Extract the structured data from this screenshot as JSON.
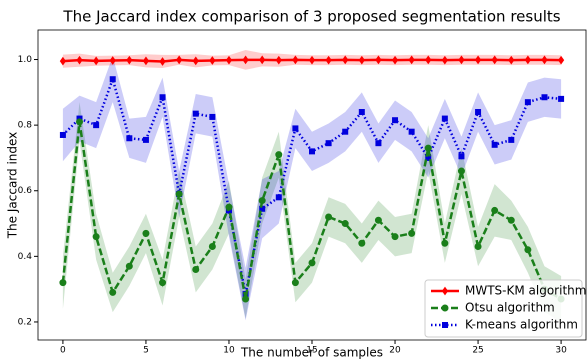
{
  "chart_data": {
    "type": "line",
    "title": "The Jaccard index comparison of 3 proposed segmentation results",
    "x_label": "The number of samples",
    "y_label": "The Jaccard index",
    "x": [
      0,
      1,
      2,
      3,
      4,
      5,
      6,
      7,
      8,
      9,
      10,
      11,
      12,
      13,
      14,
      15,
      16,
      17,
      18,
      19,
      20,
      21,
      22,
      23,
      24,
      25,
      26,
      27,
      28,
      29,
      30
    ],
    "series": [
      {
        "name": "MWTS-KM algorithm",
        "color": "#ff0000",
        "marker": "diamond",
        "values": [
          0.995,
          0.998,
          0.996,
          0.997,
          0.998,
          0.996,
          0.994,
          0.999,
          0.996,
          0.997,
          0.998,
          0.999,
          0.999,
          0.998,
          0.999,
          0.998,
          0.998,
          0.999,
          0.998,
          0.999,
          0.998,
          0.999,
          0.999,
          0.998,
          0.999,
          0.999,
          0.999,
          0.998,
          0.999,
          0.999,
          0.998
        ],
        "errors": [
          0.02,
          0.02,
          0.015,
          0.015,
          0.015,
          0.02,
          0.02,
          0.015,
          0.02,
          0.015,
          0.015,
          0.03,
          0.02,
          0.02,
          0.015,
          0.015,
          0.015,
          0.015,
          0.015,
          0.015,
          0.015,
          0.015,
          0.015,
          0.015,
          0.015,
          0.015,
          0.015,
          0.015,
          0.015,
          0.015,
          0.015
        ]
      },
      {
        "name": "Otsu algorithm",
        "color": "#1a7f1a",
        "marker": "circle",
        "values": [
          0.32,
          0.81,
          0.46,
          0.29,
          0.37,
          0.47,
          0.32,
          0.59,
          0.36,
          0.43,
          0.55,
          0.27,
          0.57,
          0.71,
          0.32,
          0.38,
          0.52,
          0.5,
          0.44,
          0.51,
          0.46,
          0.47,
          0.73,
          0.44,
          0.66,
          0.43,
          0.54,
          0.51,
          0.42,
          0.3,
          0.27
        ],
        "errors": [
          0.08,
          0.06,
          0.07,
          0.06,
          0.06,
          0.06,
          0.07,
          0.07,
          0.07,
          0.07,
          0.08,
          0.06,
          0.07,
          0.07,
          0.06,
          0.06,
          0.06,
          0.06,
          0.06,
          0.06,
          0.06,
          0.06,
          0.07,
          0.06,
          0.07,
          0.06,
          0.08,
          0.06,
          0.07,
          0.07,
          0.07
        ]
      },
      {
        "name": "K-means algorithm",
        "color": "#0000dd",
        "marker": "square",
        "values": [
          0.77,
          0.82,
          0.8,
          0.94,
          0.76,
          0.755,
          0.885,
          0.59,
          0.835,
          0.825,
          0.54,
          0.285,
          0.545,
          0.58,
          0.79,
          0.72,
          0.745,
          0.78,
          0.84,
          0.745,
          0.815,
          0.78,
          0.7,
          0.82,
          0.705,
          0.84,
          0.74,
          0.755,
          0.87,
          0.885,
          0.88
        ],
        "errors": [
          0.08,
          0.07,
          0.07,
          0.07,
          0.06,
          0.07,
          0.06,
          0.07,
          0.06,
          0.06,
          0.08,
          0.08,
          0.09,
          0.08,
          0.06,
          0.06,
          0.06,
          0.06,
          0.06,
          0.06,
          0.06,
          0.06,
          0.06,
          0.06,
          0.06,
          0.06,
          0.06,
          0.06,
          0.06,
          0.06,
          0.06
        ]
      }
    ],
    "xlim": [
      -1.5,
      31.5
    ],
    "ylim": [
      0.145,
      1.09
    ],
    "xticks": [
      0,
      5,
      10,
      15,
      20,
      25,
      30
    ],
    "yticks": [
      {
        "value": 0.2,
        "label": "0.2"
      },
      {
        "value": 0.4,
        "label": "0.4"
      },
      {
        "value": 0.6,
        "label": "0.6"
      },
      {
        "value": 0.8,
        "label": "0.8"
      },
      {
        "value": 1.0,
        "label": "1.0"
      }
    ],
    "legend": "lower right"
  }
}
